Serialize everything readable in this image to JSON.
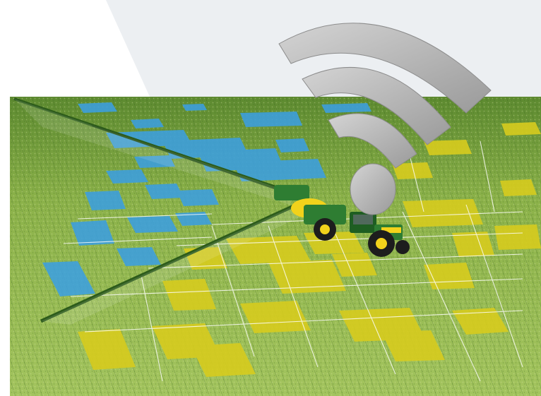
{
  "scene": {
    "icons": {
      "wifi": "wifi-icon",
      "tractor": "tractor-sprayer-icon"
    },
    "colors": {
      "background": "#ffffff",
      "grey_panel": "#eceff2",
      "field_light": "#a9c964",
      "field_mid": "#86ad45",
      "field_dark": "#4f7d2c",
      "blue_zone": "#3c9fe0",
      "yellow_zone": "#d7cc1e",
      "grid_line": "#ffffff",
      "wifi_grey": "#b4b4b4",
      "tractor_green": "#2e7d32",
      "tractor_yellow": "#f2d21b"
    }
  }
}
